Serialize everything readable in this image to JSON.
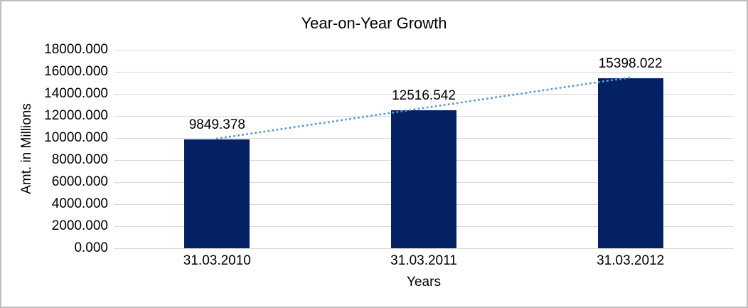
{
  "chart_data": {
    "type": "bar",
    "title": "Year-on-Year Growth",
    "xlabel": "Years",
    "ylabel": "Amt. in Millions",
    "categories": [
      "31.03.2010",
      "31.03.2011",
      "31.03.2012"
    ],
    "values": [
      9849.378,
      12516.542,
      15398.022
    ],
    "value_labels": [
      "9849.378",
      "12516.542",
      "15398.022"
    ],
    "ylim": [
      0,
      18000
    ],
    "ytick_step": 2000,
    "ytick_labels": [
      "0.000",
      "2000.000",
      "4000.000",
      "6000.000",
      "8000.000",
      "10000.000",
      "12000.000",
      "14000.000",
      "16000.000",
      "18000.000"
    ],
    "grid": true,
    "legend": "none",
    "trendline": {
      "style": "dotted",
      "from_category": "31.03.2010",
      "to_category": "31.03.2012"
    },
    "colors": {
      "background": "#ffffff",
      "frame_border": "#bebebe",
      "text": "#000000",
      "gridline": "#d9d9d9",
      "axis_line": "#d9d9d9",
      "bar_fill": "#042263",
      "trendline": "#5b9bd5"
    }
  }
}
